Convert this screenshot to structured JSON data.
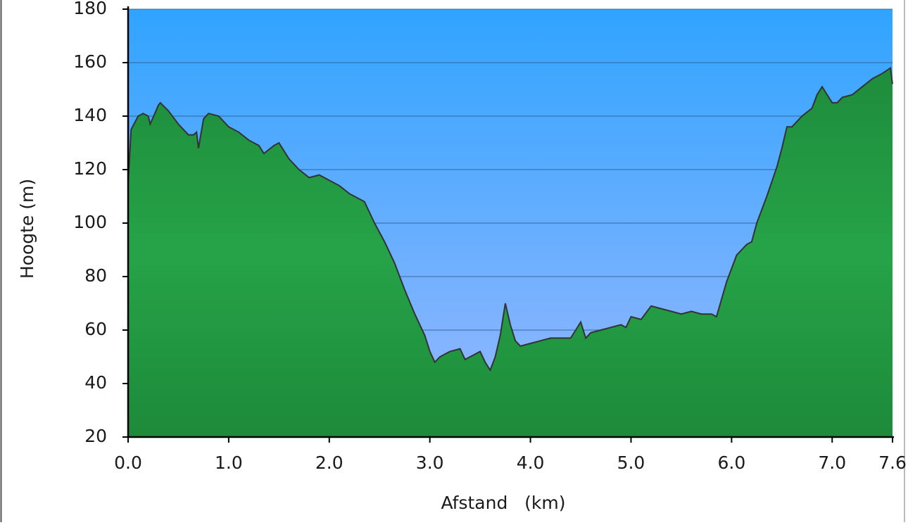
{
  "chart_data": {
    "type": "area",
    "x_label": "Afstand   (km)",
    "y_label": "Hoogte (m)",
    "x": [
      0,
      0.03,
      0.1,
      0.15,
      0.2,
      0.22,
      0.3,
      0.32,
      0.4,
      0.5,
      0.6,
      0.65,
      0.68,
      0.7,
      0.75,
      0.8,
      0.9,
      1.0,
      1.1,
      1.2,
      1.3,
      1.35,
      1.45,
      1.5,
      1.6,
      1.7,
      1.8,
      1.9,
      2.0,
      2.1,
      2.2,
      2.3,
      2.35,
      2.45,
      2.55,
      2.65,
      2.75,
      2.85,
      2.95,
      3.0,
      3.05,
      3.1,
      3.2,
      3.3,
      3.35,
      3.45,
      3.5,
      3.55,
      3.6,
      3.65,
      3.7,
      3.75,
      3.8,
      3.85,
      3.9,
      4.0,
      4.1,
      4.2,
      4.3,
      4.4,
      4.45,
      4.5,
      4.55,
      4.6,
      4.7,
      4.8,
      4.9,
      4.95,
      5.0,
      5.1,
      5.2,
      5.3,
      5.4,
      5.5,
      5.6,
      5.7,
      5.8,
      5.85,
      5.95,
      6.05,
      6.15,
      6.2,
      6.25,
      6.35,
      6.45,
      6.5,
      6.55,
      6.6,
      6.7,
      6.8,
      6.85,
      6.9,
      6.95,
      7.0,
      7.05,
      7.1,
      7.2,
      7.3,
      7.4,
      7.5,
      7.58,
      7.6
    ],
    "values": [
      115,
      135,
      140,
      141,
      140,
      137,
      144,
      145,
      142,
      137,
      133,
      133,
      134,
      128,
      139,
      141,
      140,
      136,
      134,
      131,
      129,
      126,
      129,
      130,
      124,
      120,
      117,
      118,
      116,
      114,
      111,
      109,
      108,
      100,
      93,
      85,
      75,
      66,
      58,
      52,
      48,
      50,
      52,
      53,
      49,
      51,
      52,
      48,
      45,
      50,
      58,
      70,
      62,
      56,
      54,
      55,
      56,
      57,
      57,
      57,
      60,
      63,
      57,
      59,
      60,
      61,
      62,
      61,
      65,
      64,
      69,
      68,
      67,
      66,
      67,
      66,
      66,
      65,
      78,
      88,
      92,
      93,
      100,
      110,
      121,
      128,
      136,
      136,
      140,
      143,
      148,
      151,
      148,
      145,
      145,
      147,
      148,
      151,
      154,
      156,
      158,
      152
    ],
    "color": "#22a045",
    "background_color": "#4aa8ff",
    "xlim": [
      0,
      7.6
    ],
    "ylim": [
      20,
      180
    ],
    "xticks": [
      {
        "value": 0,
        "label": "0.0"
      },
      {
        "value": 1,
        "label": "1.0"
      },
      {
        "value": 2,
        "label": "2.0"
      },
      {
        "value": 3,
        "label": "3.0"
      },
      {
        "value": 4,
        "label": "4.0"
      },
      {
        "value": 5,
        "label": "5.0"
      },
      {
        "value": 6,
        "label": "6.0"
      },
      {
        "value": 7,
        "label": "7.0"
      },
      7.6
    ],
    "yticks": [
      20,
      40,
      60,
      80,
      100,
      120,
      140,
      160,
      180
    ],
    "grid": true
  }
}
